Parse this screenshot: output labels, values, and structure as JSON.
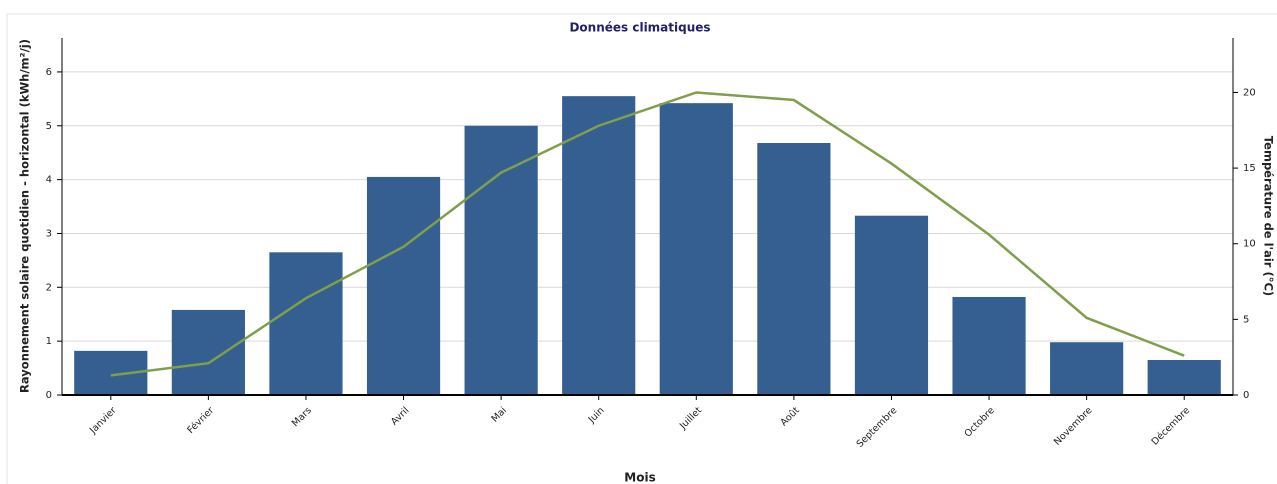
{
  "chart_data": {
    "type": "bar_line",
    "title": "Données climatiques",
    "x_label": "Mois",
    "y_label": "Rayonnement solaire quotidien - horizontal (kWh/m²/j)",
    "y2_label": "Température de l'air (°C)",
    "categories": [
      "Janvier",
      "Février",
      "Mars",
      "Avril",
      "Mai",
      "Juin",
      "Juillet",
      "Août",
      "Septembre",
      "Octobre",
      "Novembre",
      "Décembre"
    ],
    "series": [
      {
        "type": "bar",
        "color": "#365f91",
        "values": [
          0.82,
          1.58,
          2.65,
          4.05,
          5.0,
          5.55,
          5.42,
          4.68,
          3.33,
          1.82,
          0.98,
          0.65
        ]
      },
      {
        "type": "line",
        "axis": "y2",
        "color": "#7f9f4a",
        "values": [
          1.3,
          2.1,
          6.4,
          9.8,
          14.7,
          17.8,
          20.0,
          19.5,
          15.3,
          10.6,
          5.1,
          2.6
        ]
      }
    ],
    "ylim": [
      0,
      6.63
    ],
    "yticks": [
      0,
      1,
      2,
      3,
      4,
      5,
      6
    ],
    "y2lim": [
      0,
      23.6
    ],
    "y2ticks": [
      0,
      5,
      10,
      15,
      20
    ],
    "grid": true
  }
}
